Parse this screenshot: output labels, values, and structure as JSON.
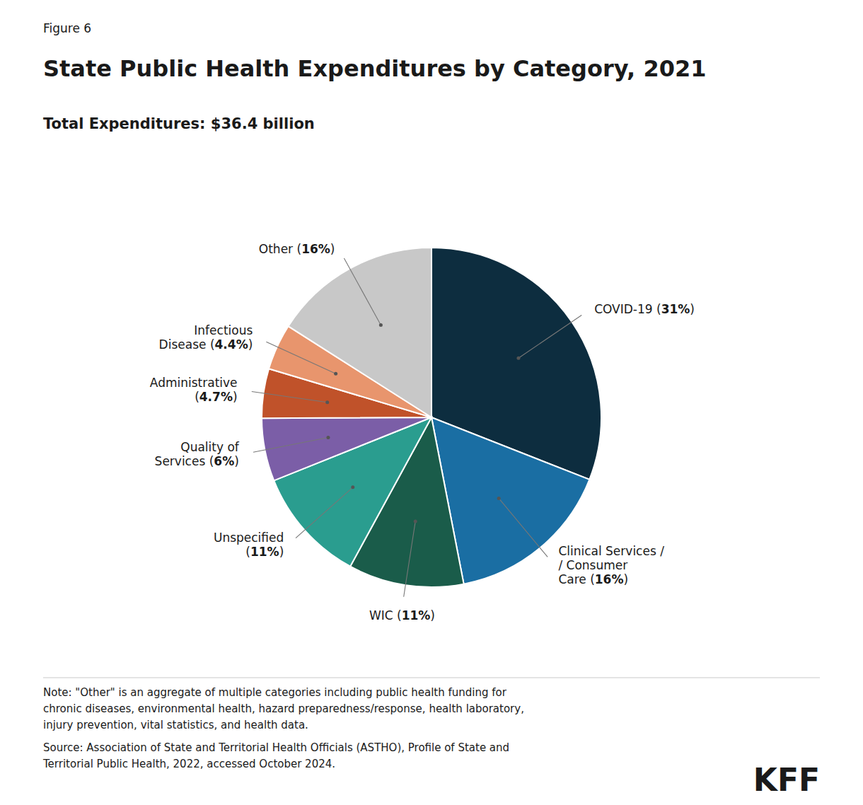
{
  "chart_data": {
    "type": "pie",
    "title": "State Public Health Expenditures by Category, 2021",
    "subtitle": "Total Expenditures: $36.4 billion",
    "categories": [
      "COVID-19 (31%)",
      "Clinical Services /\n/ Consumer\nCare (16%)",
      "WIC (11%)",
      "Unspecified\n(11%)",
      "Quality of\nServices (6%)",
      "Administrative\n(4.7%)",
      "Infectious\nDisease (4.4%)",
      "Other (16%)"
    ],
    "values": [
      31,
      16,
      11,
      11,
      6,
      4.7,
      4.4,
      16
    ],
    "colors": [
      "#0d2d3f",
      "#1a6ea3",
      "#1a5c4a",
      "#2a9d8f",
      "#7b5ea7",
      "#c0522a",
      "#e8956d",
      "#c8c8c8"
    ],
    "annotations": [
      "Figure 6",
      "Note: \"Other\" is an aggregate of multiple categories including public health funding for\nchronic diseases, environmental health, hazard preparedness/response, health laboratory,\ninjury prevention, vital statistics, and health data.",
      "Source: Association of State and Territorial Health Officials (ASTHO), Profile of State and\nTerritorial Public Health, 2022, accessed October 2024.",
      "KFF"
    ]
  }
}
